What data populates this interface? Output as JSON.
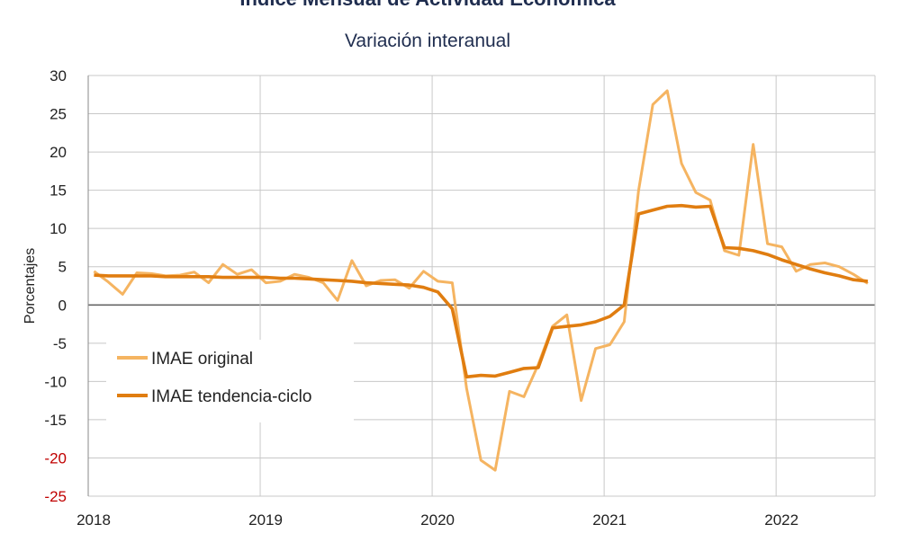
{
  "chart_data": {
    "type": "line",
    "title": "Índice Mensual de  Actividad Económica",
    "subtitle": "Variación interanual",
    "ylabel": "Porcentajes",
    "xlabel": "",
    "ylim": [
      -25,
      30
    ],
    "yticks": [
      30,
      25,
      20,
      15,
      10,
      5,
      0,
      -5,
      -10,
      -15,
      -20,
      -25
    ],
    "xticks": [
      "2018",
      "2019",
      "2020",
      "2021",
      "2022"
    ],
    "x_start": "2018-01",
    "grid": true,
    "legend_position": "left-center",
    "series": [
      {
        "name": "IMAE original",
        "color": "#f5b461",
        "values": [
          4.4,
          3.0,
          1.4,
          4.2,
          4.1,
          3.8,
          3.9,
          4.3,
          2.9,
          5.3,
          4.0,
          4.6,
          2.9,
          3.1,
          4.0,
          3.6,
          2.9,
          0.6,
          5.8,
          2.5,
          3.2,
          3.3,
          2.2,
          4.4,
          3.1,
          2.9,
          -10.9,
          -20.3,
          -21.6,
          -11.3,
          -12.0,
          -7.8,
          -2.8,
          -1.3,
          -12.5,
          -5.7,
          -5.2,
          -2.2,
          14.9,
          26.2,
          28.0,
          18.5,
          14.7,
          13.7,
          7.1,
          6.5,
          21.0,
          8.0,
          7.6,
          4.4,
          5.3,
          5.5,
          5.0,
          4.0,
          2.8
        ]
      },
      {
        "name": "IMAE tendencia-ciclo",
        "color": "#e07d10",
        "values": [
          3.9,
          3.8,
          3.8,
          3.8,
          3.8,
          3.7,
          3.7,
          3.7,
          3.7,
          3.6,
          3.6,
          3.6,
          3.6,
          3.5,
          3.5,
          3.4,
          3.3,
          3.2,
          3.1,
          2.9,
          2.8,
          2.7,
          2.6,
          2.3,
          1.7,
          -0.5,
          -9.4,
          -9.2,
          -9.3,
          -8.8,
          -8.3,
          -8.2,
          -3.0,
          -2.8,
          -2.6,
          -2.2,
          -1.5,
          0.0,
          11.9,
          12.4,
          12.9,
          13.0,
          12.8,
          12.9,
          7.5,
          7.4,
          7.1,
          6.6,
          5.9,
          5.3,
          4.7,
          4.2,
          3.8,
          3.3,
          3.1
        ]
      }
    ]
  }
}
